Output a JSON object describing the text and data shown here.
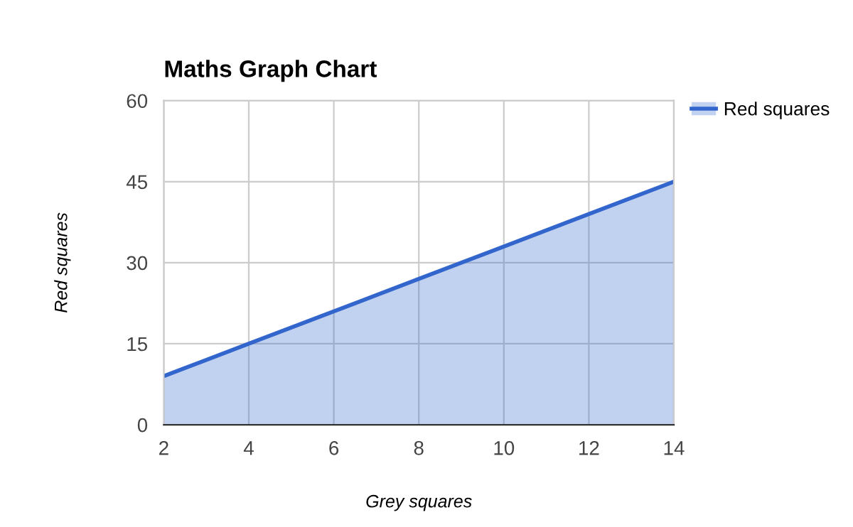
{
  "chart_data": {
    "type": "area",
    "title": "Maths Graph Chart",
    "xlabel": "Grey squares",
    "ylabel": "Red squares",
    "x": [
      2,
      4,
      6,
      8,
      10,
      12,
      14
    ],
    "series": [
      {
        "name": "Red squares",
        "color": "#3366cc",
        "values": [
          9,
          15,
          21,
          27,
          33,
          39,
          45
        ]
      }
    ],
    "xlim": [
      2,
      14
    ],
    "xticks": [
      2,
      4,
      6,
      8,
      10,
      12,
      14
    ],
    "ylim": [
      0,
      60
    ],
    "yticks": [
      0,
      15,
      30,
      45,
      60
    ],
    "grid": true,
    "legend": "top right"
  }
}
